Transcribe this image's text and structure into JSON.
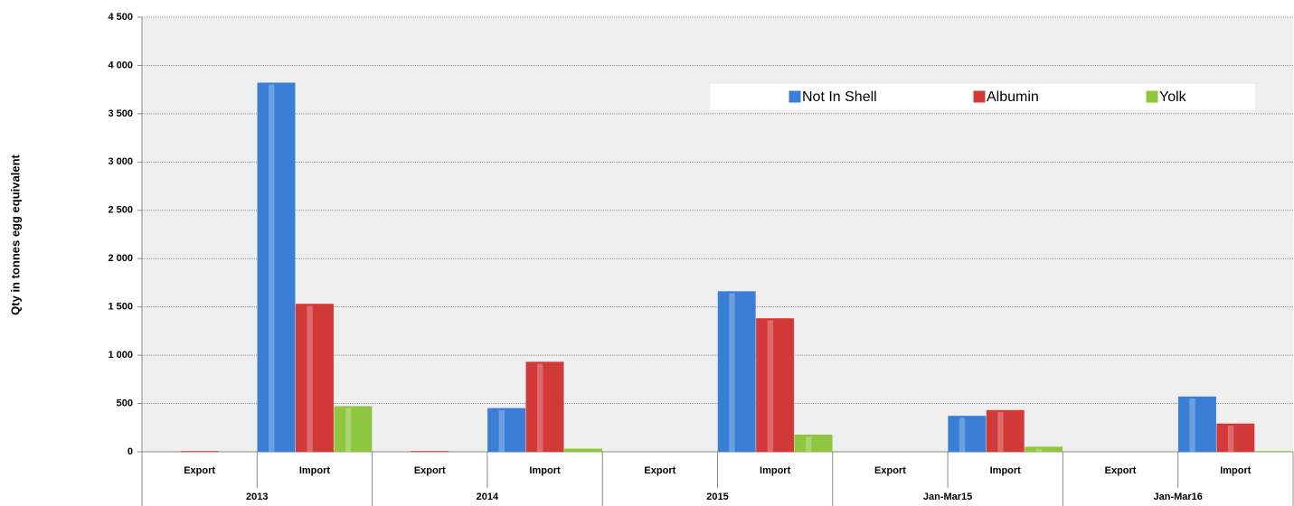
{
  "chart_data": {
    "type": "bar",
    "y_label": "Qty in tonnes egg equivalent",
    "categories": [
      "Export",
      "Import",
      "Export",
      "Import",
      "Export",
      "Import",
      "Export",
      "Import",
      "Export",
      "Import"
    ],
    "groups": [
      "2013",
      "2014",
      "2015",
      "Jan-Mar15",
      "Jan-Mar16"
    ],
    "series": [
      {
        "name": "Not In Shell",
        "color": "#3a7fd5",
        "values": [
          0,
          3820,
          0,
          450,
          0,
          1660,
          0,
          370,
          0,
          570
        ]
      },
      {
        "name": "Albumin",
        "color": "#d23a3a",
        "values": [
          5,
          1530,
          5,
          930,
          0,
          1380,
          0,
          430,
          0,
          290
        ]
      },
      {
        "name": "Yolk",
        "color": "#8ec63f",
        "values": [
          0,
          470,
          0,
          30,
          0,
          175,
          0,
          50,
          0,
          5
        ]
      }
    ],
    "ylim": [
      0,
      4500
    ],
    "yticks": [
      0,
      500,
      {
        "value": 1000,
        "label": "1 000"
      },
      {
        "value": 1500,
        "label": "1 500"
      },
      {
        "value": 2000,
        "label": "2 000"
      },
      {
        "value": 2500,
        "label": "2 500"
      },
      {
        "value": 3000,
        "label": "3 000"
      },
      {
        "value": 3500,
        "label": "3 500"
      },
      {
        "value": 4000,
        "label": "4 000"
      },
      {
        "value": 4500,
        "label": "4 500"
      }
    ],
    "grid": true,
    "legend": "top-right"
  }
}
